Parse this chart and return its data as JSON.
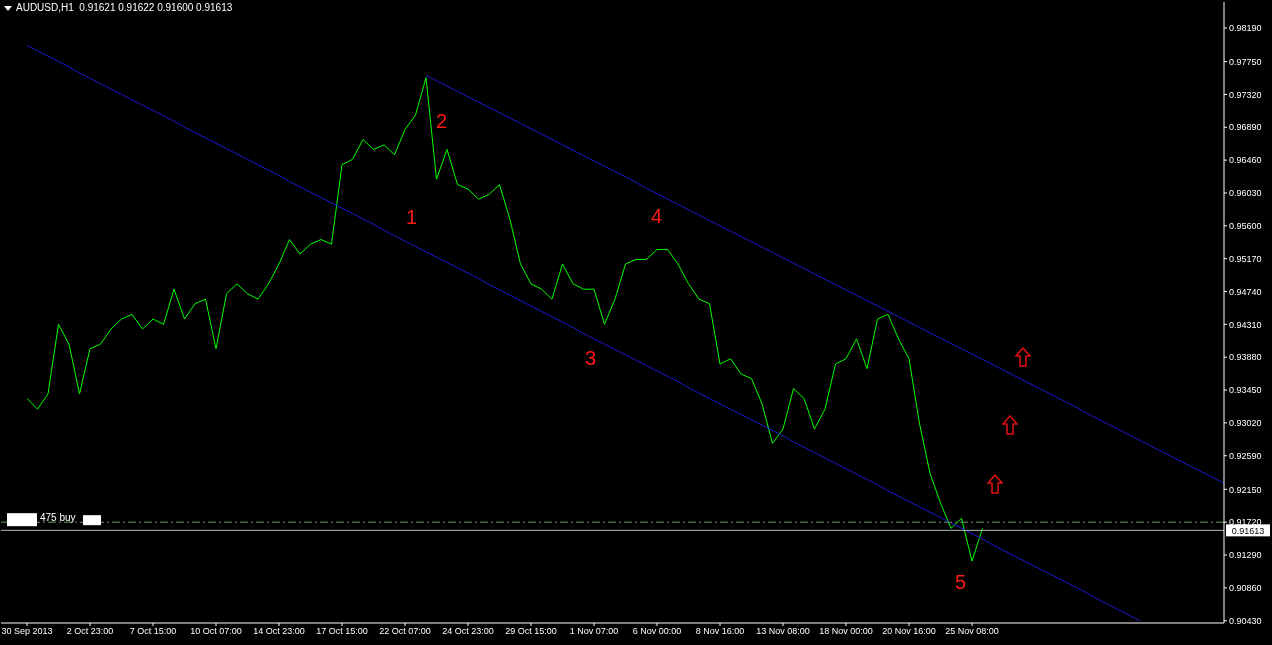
{
  "chart_data": {
    "type": "line",
    "title": "AUDUSD,H1  0.91621 0.91622 0.91600 0.91613",
    "categories": [
      "30 Sep 2013",
      null,
      null,
      null,
      null,
      null,
      "2 Oct 23:00",
      null,
      null,
      null,
      null,
      null,
      "7 Oct 15:00",
      null,
      null,
      null,
      null,
      null,
      "10 Oct 07:00",
      null,
      null,
      null,
      null,
      null,
      "14 Oct 23:00",
      null,
      null,
      null,
      null,
      null,
      "17 Oct 15:00",
      null,
      null,
      null,
      null,
      null,
      "22 Oct 07:00",
      null,
      null,
      null,
      null,
      null,
      "24 Oct 23:00",
      null,
      null,
      null,
      null,
      null,
      "29 Oct 15:00",
      null,
      null,
      null,
      null,
      null,
      "1 Nov 07:00",
      null,
      null,
      null,
      null,
      null,
      "6 Nov 00:00",
      null,
      null,
      null,
      null,
      null,
      "8 Nov 16:00",
      null,
      null,
      null,
      null,
      null,
      "13 Nov 08:00",
      null,
      null,
      null,
      null,
      null,
      "18 Nov 00:00",
      null,
      null,
      null,
      null,
      null,
      "20 Nov 16:00",
      null,
      null,
      null,
      null,
      null,
      "25 Nov 08:00",
      null,
      null,
      null,
      null,
      null,
      null,
      null,
      null,
      null,
      null,
      null,
      null,
      null,
      null,
      null,
      null,
      null,
      null,
      null,
      null,
      null,
      null,
      null,
      null
    ],
    "ylim": [
      0.904,
      0.9853
    ],
    "yticks": [
      {
        "value": 0.9819,
        "label": "0.98190"
      },
      {
        "value": 0.9775,
        "label": "0.97750"
      },
      {
        "value": 0.9732,
        "label": "0.97320"
      },
      {
        "value": 0.9689,
        "label": "0.96890"
      },
      {
        "value": 0.9646,
        "label": "0.96460"
      },
      {
        "value": 0.9603,
        "label": "0.96030"
      },
      {
        "value": 0.956,
        "label": "0.95600"
      },
      {
        "value": 0.9517,
        "label": "0.95170"
      },
      {
        "value": 0.9474,
        "label": "0.94740"
      },
      {
        "value": 0.9431,
        "label": "0.94310"
      },
      {
        "value": 0.9388,
        "label": "0.93880"
      },
      {
        "value": 0.9345,
        "label": "0.93450"
      },
      {
        "value": 0.9302,
        "label": "0.93020"
      },
      {
        "value": 0.9259,
        "label": "0.92590"
      },
      {
        "value": 0.9215,
        "label": "0.92150"
      },
      {
        "value": 0.9172,
        "label": "0.91720"
      },
      {
        "value": 0.9129,
        "label": "0.91290"
      },
      {
        "value": 0.9086,
        "label": "0.90860"
      },
      {
        "value": 0.9043,
        "label": "0.90430"
      }
    ],
    "grid": false,
    "legend": false,
    "marker": "none",
    "line_style": "solid",
    "series": [
      {
        "type": "line",
        "color": "#00ff00",
        "values": [
          0.9334,
          0.932,
          0.934,
          0.9431,
          0.9405,
          0.934,
          0.9399,
          0.9405,
          0.9425,
          0.9438,
          0.9444,
          0.9425,
          0.9438,
          0.9431,
          0.9477,
          0.9438,
          0.9458,
          0.9464,
          0.9399,
          0.9471,
          0.9484,
          0.9471,
          0.9464,
          0.9484,
          0.951,
          0.9542,
          0.9523,
          0.9536,
          0.9542,
          0.9536,
          0.964,
          0.9647,
          0.9673,
          0.966,
          0.9666,
          0.9653,
          0.9686,
          0.9705,
          0.9754,
          0.9621,
          0.966,
          0.9614,
          0.9608,
          0.9595,
          0.9601,
          0.9614,
          0.9568,
          0.951,
          0.9484,
          0.9477,
          0.9464,
          0.951,
          0.9484,
          0.9477,
          0.9477,
          0.9431,
          0.9464,
          0.951,
          0.9516,
          0.9516,
          0.9529,
          0.9529,
          0.951,
          0.9484,
          0.9464,
          0.9458,
          0.9379,
          0.9386,
          0.9366,
          0.936,
          0.9327,
          0.9275,
          0.9294,
          0.9347,
          0.9334,
          0.9294,
          0.932,
          0.9379,
          0.9386,
          0.9412,
          0.9373,
          0.9438,
          0.9444,
          0.9412,
          0.9386,
          0.9301,
          0.9236,
          0.9197,
          0.9164,
          0.9177,
          0.9121,
          0.9164,
          null,
          null,
          null,
          null,
          null,
          null,
          null,
          null,
          null,
          null,
          null,
          null,
          null,
          null,
          null,
          null,
          null,
          null,
          null,
          null,
          null,
          null,
          null
        ]
      },
      {
        "type": "line",
        "color": "#1a1ad0",
        "values": [
          0.9796,
          0.9789,
          0.9782,
          0.9775,
          0.9768,
          0.976,
          0.9753,
          0.9746,
          0.9739,
          0.9732,
          0.9725,
          0.9718,
          0.9711,
          0.9704,
          0.9697,
          0.9689,
          0.9682,
          0.9675,
          0.9668,
          0.9661,
          0.9654,
          0.9647,
          0.964,
          0.9633,
          0.9626,
          0.9618,
          0.9611,
          0.9604,
          0.9597,
          0.959,
          0.9583,
          0.9576,
          0.9569,
          0.9562,
          0.9554,
          0.9547,
          0.954,
          0.9533,
          0.9526,
          0.9519,
          0.9512,
          0.9505,
          0.9498,
          0.9491,
          0.9483,
          0.9476,
          0.9469,
          0.9462,
          0.9455,
          0.9448,
          0.9441,
          0.9434,
          0.9427,
          0.9419,
          0.9412,
          0.9405,
          0.9398,
          0.9391,
          0.9384,
          0.9377,
          0.937,
          0.9363,
          0.9356,
          0.9348,
          0.9341,
          0.9334,
          0.9327,
          0.932,
          0.9313,
          0.9306,
          0.9299,
          0.9292,
          0.9285,
          0.9277,
          0.927,
          0.9263,
          0.9256,
          0.9249,
          0.9242,
          0.9235,
          0.9228,
          0.9221,
          0.9213,
          0.9206,
          0.9199,
          0.9192,
          0.9185,
          0.9178,
          0.9171,
          0.9164,
          0.9157,
          0.915,
          0.9142,
          0.9135,
          0.9128,
          0.9121,
          0.9114,
          0.9107,
          0.91,
          0.9093,
          0.9086,
          0.9079,
          0.9071,
          0.9064,
          0.9057,
          0.905,
          0.9043,
          null,
          null,
          null,
          null,
          null,
          null,
          null,
          null
        ]
      },
      {
        "type": "line",
        "color": "#1a1ad0",
        "values": [
          null,
          null,
          null,
          null,
          null,
          null,
          null,
          null,
          null,
          null,
          null,
          null,
          null,
          null,
          null,
          null,
          null,
          null,
          null,
          null,
          null,
          null,
          null,
          null,
          null,
          null,
          null,
          null,
          null,
          null,
          null,
          null,
          null,
          null,
          null,
          null,
          null,
          null,
          0.9757,
          0.975,
          0.9743,
          0.9736,
          0.9729,
          0.9722,
          0.9715,
          0.9708,
          0.9701,
          0.9694,
          0.9687,
          0.968,
          0.9673,
          0.9666,
          0.9659,
          0.9652,
          0.9645,
          0.9638,
          0.9631,
          0.9624,
          0.9617,
          0.9609,
          0.9602,
          0.9595,
          0.9588,
          0.9581,
          0.9574,
          0.9567,
          0.956,
          0.9553,
          0.9546,
          0.9539,
          0.9532,
          0.9525,
          0.9518,
          0.9511,
          0.9504,
          0.9497,
          0.949,
          0.9483,
          0.9476,
          0.9469,
          0.9462,
          0.9455,
          0.9448,
          0.9441,
          0.9434,
          0.9427,
          0.942,
          0.9413,
          0.9406,
          0.9399,
          0.9392,
          0.9385,
          0.9378,
          0.9371,
          0.9364,
          0.9357,
          0.935,
          0.9343,
          0.9336,
          0.9329,
          0.9322,
          0.9314,
          0.9307,
          0.93,
          0.9293,
          0.9286,
          0.9279,
          0.9272,
          0.9265,
          0.9258,
          0.9251,
          0.9244,
          0.9237,
          0.923,
          0.9223
        ]
      }
    ],
    "ref_lines": [
      {
        "axis": "y",
        "value": 0.9172,
        "label": "475 buy",
        "color": "#6a9a6a",
        "line_style": "dashed"
      },
      {
        "axis": "y",
        "value": 0.91613,
        "label": "0.91613",
        "color": "#b0b8b0",
        "line_style": "solid"
      }
    ],
    "annotations": [
      "1",
      "2",
      "3",
      "4",
      "5"
    ]
  }
}
